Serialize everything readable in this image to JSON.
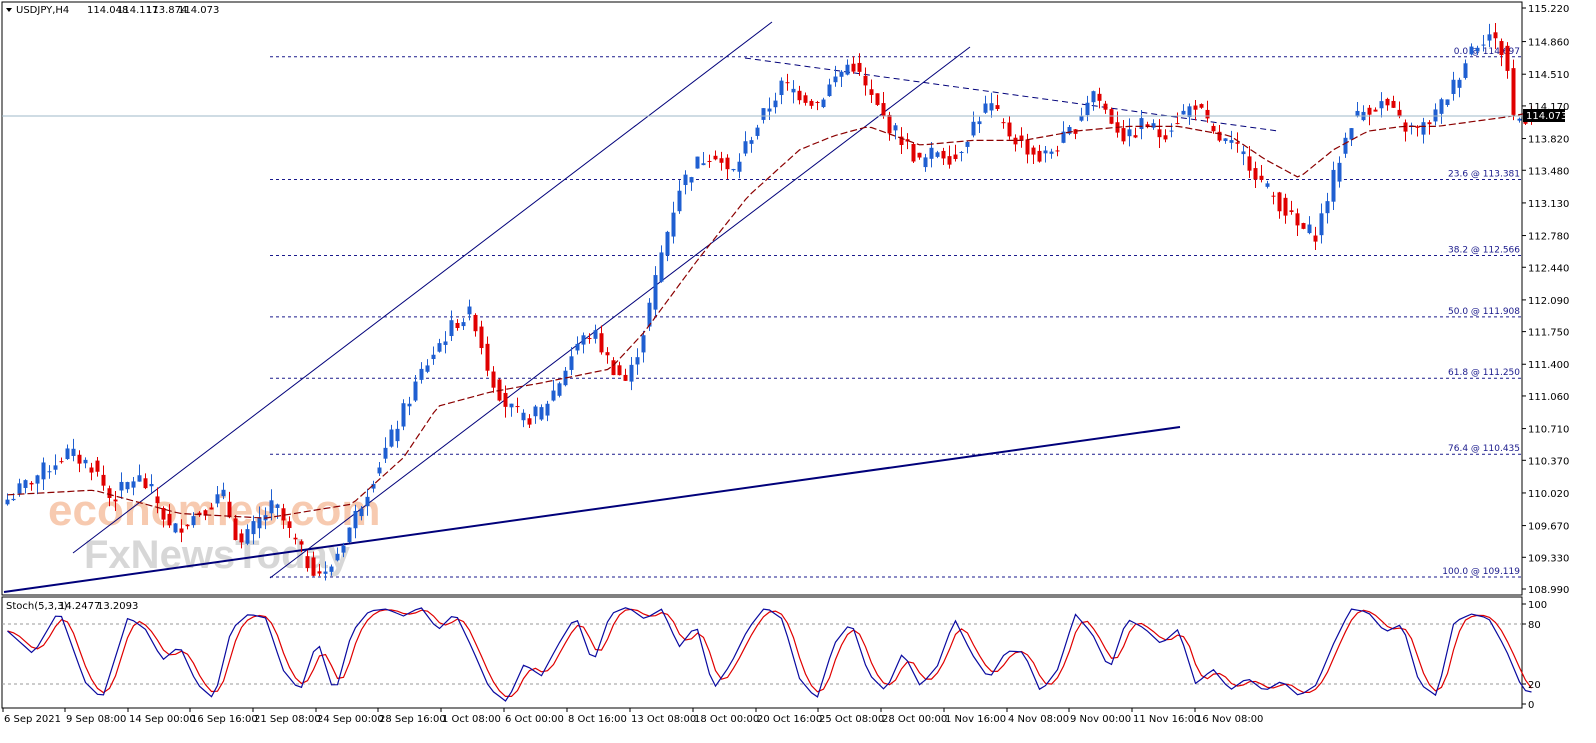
{
  "header": {
    "symbol": "USDJPY,H4",
    "open": "114.048",
    "high": "114.117",
    "low": "113.874",
    "close": "114.073"
  },
  "indicator_header": {
    "label": "Stoch(5,3,3)",
    "main": "14.2477",
    "signal": "13.2093"
  },
  "watermark": {
    "line1": "economies.com",
    "line2": "FxNewsToday"
  },
  "colors": {
    "bull": "#1f5fd1",
    "bear": "#e00000",
    "ma": "#8b0000",
    "trendline": "#00007a",
    "fib": "#1a1a8c",
    "current_price_bg": "#000000",
    "stoch_main": "#0a0aa0",
    "stoch_signal": "#e00000"
  },
  "chart_data": {
    "type": "candlestick",
    "symbol": "USDJPY",
    "timeframe": "H4",
    "ylim": [
      108.99,
      115.22
    ],
    "y_ticks": [
      "115.220",
      "114.860",
      "114.510",
      "114.170",
      "113.820",
      "113.480",
      "113.130",
      "112.780",
      "112.440",
      "112.090",
      "111.750",
      "111.400",
      "111.060",
      "110.710",
      "110.370",
      "110.020",
      "109.670",
      "109.330",
      "108.990"
    ],
    "x_ticks": [
      "6 Sep 2021",
      "9 Sep 08:00",
      "14 Sep 00:00",
      "16 Sep 16:00",
      "21 Sep 08:00",
      "24 Sep 00:00",
      "28 Sep 16:00",
      "1 Oct 08:00",
      "6 Oct 00:00",
      "8 Oct 16:00",
      "13 Oct 08:00",
      "18 Oct 00:00",
      "20 Oct 16:00",
      "25 Oct 08:00",
      "28 Oct 00:00",
      "1 Nov 16:00",
      "4 Nov 08:00",
      "9 Nov 00:00",
      "11 Nov 16:00",
      "16 Nov 08:00"
    ],
    "current_price": "114.073",
    "fibonacci": [
      {
        "label": "0.0 @ 114.697",
        "price": 114.697
      },
      {
        "label": "23.6 @ 113.381",
        "price": 113.381
      },
      {
        "label": "38.2 @ 112.566",
        "price": 112.566
      },
      {
        "label": "50.0 @ 111.908",
        "price": 111.908
      },
      {
        "label": "61.8 @ 111.250",
        "price": 111.25
      },
      {
        "label": "76.4 @ 110.435",
        "price": 110.435
      },
      {
        "label": "100.0 @ 109.119",
        "price": 109.119
      }
    ],
    "price_path": [
      [
        0,
        109.95
      ],
      [
        4,
        110.25
      ],
      [
        7,
        110.45
      ],
      [
        10,
        110.3
      ],
      [
        12,
        109.95
      ],
      [
        15,
        110.2
      ],
      [
        17,
        110.0
      ],
      [
        19,
        109.6
      ],
      [
        22,
        109.8
      ],
      [
        25,
        110.0
      ],
      [
        27,
        109.45
      ],
      [
        29,
        109.7
      ],
      [
        31,
        109.9
      ],
      [
        33,
        109.55
      ],
      [
        35,
        109.25
      ],
      [
        37,
        109.13
      ],
      [
        40,
        109.7
      ],
      [
        43,
        110.3
      ],
      [
        46,
        110.9
      ],
      [
        48,
        111.3
      ],
      [
        50,
        111.6
      ],
      [
        52,
        111.85
      ],
      [
        54,
        111.95
      ],
      [
        56,
        111.3
      ],
      [
        58,
        110.95
      ],
      [
        60,
        110.8
      ],
      [
        62,
        110.9
      ],
      [
        64,
        111.2
      ],
      [
        66,
        111.6
      ],
      [
        68,
        111.75
      ],
      [
        70,
        111.4
      ],
      [
        72,
        111.2
      ],
      [
        74,
        111.8
      ],
      [
        76,
        112.6
      ],
      [
        78,
        113.3
      ],
      [
        80,
        113.55
      ],
      [
        82,
        113.7
      ],
      [
        84,
        113.4
      ],
      [
        86,
        113.8
      ],
      [
        88,
        114.1
      ],
      [
        90,
        114.4
      ],
      [
        92,
        114.3
      ],
      [
        94,
        114.2
      ],
      [
        96,
        114.45
      ],
      [
        98,
        114.65
      ],
      [
        100,
        114.3
      ],
      [
        102,
        114.0
      ],
      [
        104,
        113.8
      ],
      [
        106,
        113.55
      ],
      [
        108,
        113.7
      ],
      [
        110,
        113.6
      ],
      [
        112,
        113.95
      ],
      [
        114,
        114.2
      ],
      [
        116,
        113.9
      ],
      [
        118,
        113.75
      ],
      [
        120,
        113.6
      ],
      [
        122,
        113.75
      ],
      [
        124,
        113.95
      ],
      [
        126,
        114.35
      ],
      [
        128,
        114.05
      ],
      [
        130,
        113.8
      ],
      [
        132,
        114.0
      ],
      [
        134,
        113.85
      ],
      [
        136,
        114.05
      ],
      [
        138,
        114.2
      ],
      [
        140,
        113.85
      ],
      [
        142,
        113.75
      ],
      [
        144,
        113.6
      ],
      [
        146,
        113.3
      ],
      [
        148,
        113.1
      ],
      [
        150,
        112.85
      ],
      [
        152,
        112.8
      ],
      [
        154,
        113.4
      ],
      [
        156,
        114.0
      ],
      [
        158,
        114.15
      ],
      [
        160,
        114.2
      ],
      [
        162,
        113.95
      ],
      [
        164,
        113.9
      ],
      [
        166,
        114.1
      ],
      [
        168,
        114.4
      ],
      [
        170,
        114.8
      ],
      [
        172,
        114.95
      ],
      [
        174,
        114.7
      ],
      [
        175,
        114.0
      ],
      [
        176,
        114.05
      ],
      [
        177,
        114.08
      ]
    ],
    "ma_path": [
      [
        0,
        110.0
      ],
      [
        10,
        110.05
      ],
      [
        20,
        109.8
      ],
      [
        30,
        109.75
      ],
      [
        40,
        109.9
      ],
      [
        46,
        110.4
      ],
      [
        50,
        110.95
      ],
      [
        56,
        111.1
      ],
      [
        62,
        111.2
      ],
      [
        70,
        111.35
      ],
      [
        74,
        111.75
      ],
      [
        80,
        112.5
      ],
      [
        86,
        113.2
      ],
      [
        92,
        113.7
      ],
      [
        96,
        113.85
      ],
      [
        100,
        113.95
      ],
      [
        106,
        113.75
      ],
      [
        112,
        113.8
      ],
      [
        118,
        113.8
      ],
      [
        124,
        113.9
      ],
      [
        130,
        113.95
      ],
      [
        136,
        113.95
      ],
      [
        142,
        113.85
      ],
      [
        146,
        113.6
      ],
      [
        150,
        113.4
      ],
      [
        154,
        113.7
      ],
      [
        158,
        113.9
      ],
      [
        162,
        113.95
      ],
      [
        166,
        113.95
      ],
      [
        170,
        114.0
      ],
      [
        174,
        114.05
      ],
      [
        177,
        114.1
      ]
    ],
    "stoch_main": [
      [
        0,
        73
      ],
      [
        3,
        50
      ],
      [
        6,
        94
      ],
      [
        9,
        22
      ],
      [
        11,
        5
      ],
      [
        14,
        87
      ],
      [
        16,
        75
      ],
      [
        18,
        44
      ],
      [
        20,
        58
      ],
      [
        22,
        20
      ],
      [
        24,
        5
      ],
      [
        26,
        75
      ],
      [
        28,
        90
      ],
      [
        30,
        86
      ],
      [
        32,
        34
      ],
      [
        34,
        13
      ],
      [
        36,
        64
      ],
      [
        38,
        9
      ],
      [
        40,
        72
      ],
      [
        42,
        93
      ],
      [
        44,
        95
      ],
      [
        46,
        88
      ],
      [
        48,
        97
      ],
      [
        50,
        74
      ],
      [
        52,
        91
      ],
      [
        54,
        55
      ],
      [
        56,
        15
      ],
      [
        58,
        2
      ],
      [
        60,
        40
      ],
      [
        62,
        28
      ],
      [
        64,
        60
      ],
      [
        66,
        88
      ],
      [
        68,
        40
      ],
      [
        70,
        90
      ],
      [
        72,
        97
      ],
      [
        74,
        85
      ],
      [
        76,
        95
      ],
      [
        78,
        57
      ],
      [
        80,
        79
      ],
      [
        82,
        15
      ],
      [
        84,
        40
      ],
      [
        86,
        75
      ],
      [
        88,
        97
      ],
      [
        90,
        85
      ],
      [
        92,
        25
      ],
      [
        94,
        5
      ],
      [
        96,
        60
      ],
      [
        98,
        82
      ],
      [
        100,
        30
      ],
      [
        102,
        13
      ],
      [
        104,
        52
      ],
      [
        106,
        18
      ],
      [
        108,
        38
      ],
      [
        110,
        85
      ],
      [
        112,
        50
      ],
      [
        114,
        25
      ],
      [
        116,
        53
      ],
      [
        118,
        52
      ],
      [
        120,
        12
      ],
      [
        122,
        35
      ],
      [
        124,
        90
      ],
      [
        126,
        70
      ],
      [
        128,
        34
      ],
      [
        130,
        85
      ],
      [
        132,
        76
      ],
      [
        134,
        60
      ],
      [
        136,
        75
      ],
      [
        138,
        20
      ],
      [
        140,
        35
      ],
      [
        142,
        14
      ],
      [
        144,
        26
      ],
      [
        146,
        13
      ],
      [
        148,
        23
      ],
      [
        150,
        8
      ],
      [
        152,
        19
      ],
      [
        154,
        60
      ],
      [
        156,
        95
      ],
      [
        158,
        92
      ],
      [
        160,
        72
      ],
      [
        162,
        80
      ],
      [
        164,
        20
      ],
      [
        166,
        8
      ],
      [
        168,
        82
      ],
      [
        170,
        90
      ],
      [
        172,
        86
      ],
      [
        174,
        55
      ],
      [
        176,
        14
      ],
      [
        177,
        12
      ]
    ],
    "stoch_levels": [
      20,
      80
    ]
  }
}
